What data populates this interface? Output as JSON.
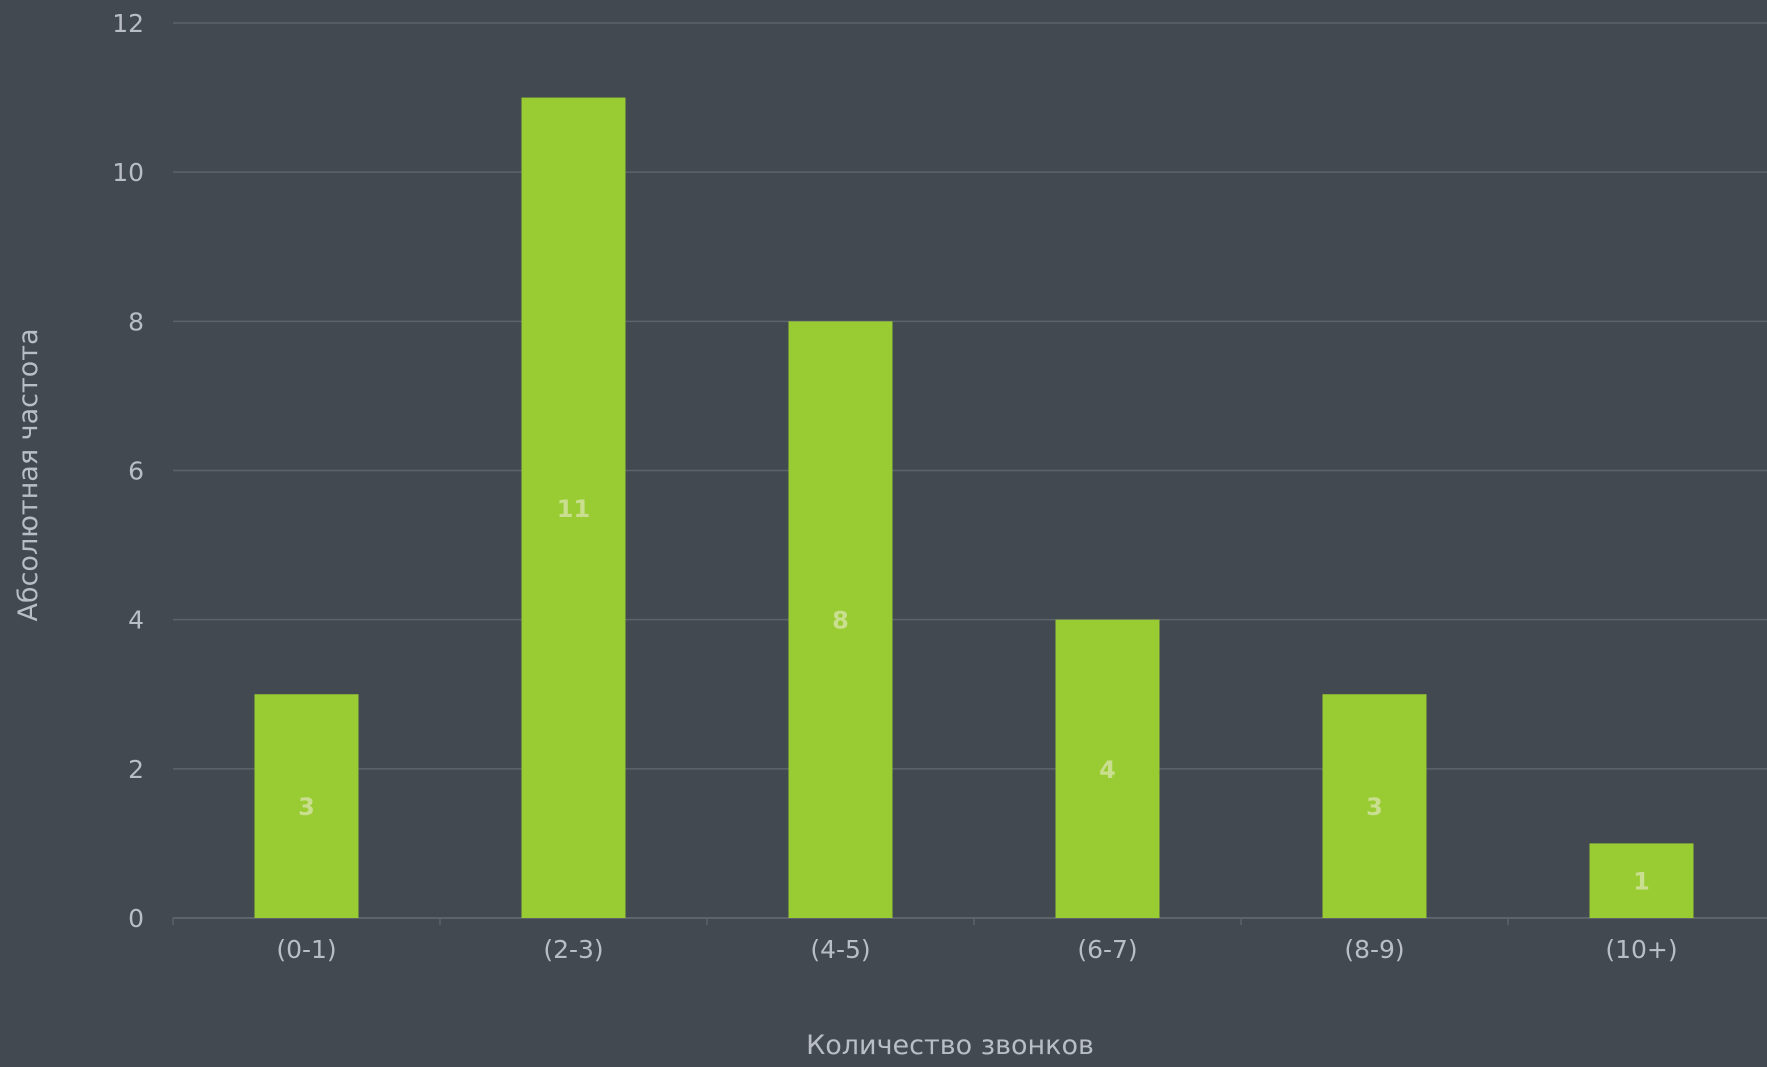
{
  "colors": {
    "background": "#434951",
    "bar": "#99cc33",
    "gridline": "#5d636b",
    "axis_text": "#b9bec4",
    "bar_label": "#c9df8f"
  },
  "chart_data": {
    "type": "bar",
    "title": "",
    "xlabel": "Количество звонков",
    "ylabel": "Абсолютная частота",
    "categories": [
      "(0-1)",
      "(2-3)",
      "(4-5)",
      "(6-7)",
      "(8-9)",
      "(10+)"
    ],
    "values": [
      3,
      11,
      8,
      4,
      3,
      1
    ],
    "data_labels": [
      "3",
      "11",
      "8",
      "4",
      "3",
      "1"
    ],
    "ylim": [
      0,
      12
    ],
    "yticks": [
      0,
      2,
      4,
      6,
      8,
      10,
      12
    ],
    "grid": true,
    "legend": "none"
  }
}
